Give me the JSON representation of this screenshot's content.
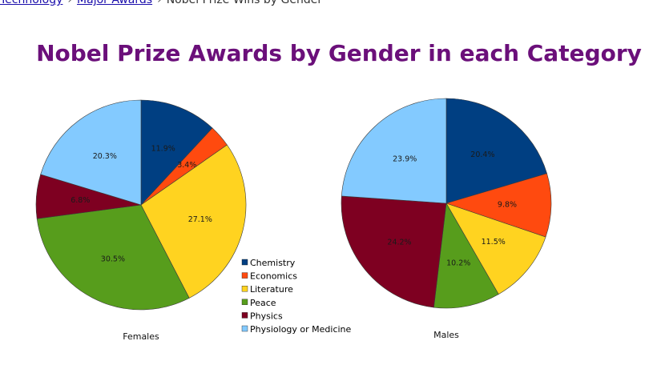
{
  "breadcrumb": {
    "items": [
      "Technology",
      "Major Awards",
      "Nobel Prize Wins by Gender"
    ]
  },
  "chart_data": {
    "type": "pie",
    "title": "Nobel Prize Awards by Gender in each Category",
    "categories": [
      "Chemistry",
      "Economics",
      "Literature",
      "Peace",
      "Physics",
      "Physiology or Medicine"
    ],
    "colors": [
      "#003f82",
      "#ff4a0f",
      "#ffd320",
      "#579d1c",
      "#7e0021",
      "#83caff"
    ],
    "legend_position": "center",
    "series": [
      {
        "name": "Females",
        "values": [
          11.9,
          3.4,
          27.1,
          30.5,
          6.8,
          20.3
        ],
        "labels": [
          "11.9%",
          "3.4%",
          "27.1%",
          "30.5%",
          "6.8%",
          "20.3%"
        ]
      },
      {
        "name": "Males",
        "values": [
          20.4,
          9.8,
          11.5,
          10.2,
          24.2,
          23.9
        ],
        "labels": [
          "20.4%",
          "9.8%",
          "11.5%",
          "10.2%",
          "24.2%",
          "23.9%"
        ]
      }
    ]
  }
}
